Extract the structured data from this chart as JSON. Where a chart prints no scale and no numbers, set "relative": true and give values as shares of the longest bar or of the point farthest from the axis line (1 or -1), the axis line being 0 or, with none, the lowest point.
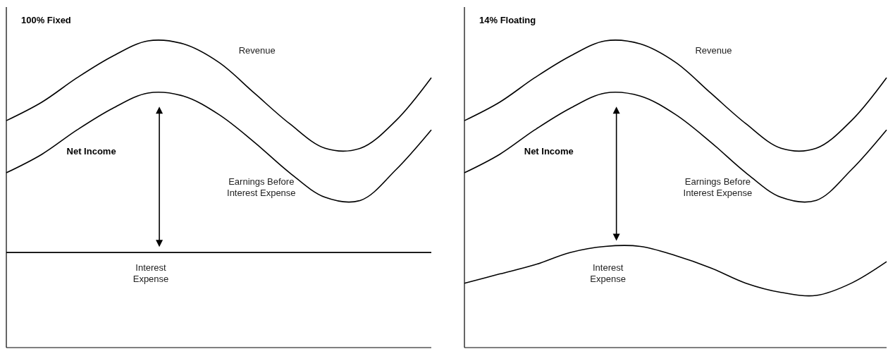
{
  "chart_data": [
    {
      "type": "line",
      "title": "100% Fixed",
      "relative": true,
      "categories": [
        null,
        null,
        null,
        null,
        null,
        null,
        null,
        null,
        null,
        null,
        null,
        null,
        null
      ],
      "series": [
        {
          "name": "Revenue",
          "color": "#000000",
          "values": [
            0.74,
            0.8,
            0.88,
            0.95,
            1.0,
            0.99,
            0.93,
            0.83,
            0.73,
            0.65,
            0.65,
            0.74,
            0.88
          ]
        },
        {
          "name": "Earnings Before Interest Expense",
          "color": "#000000",
          "values": [
            0.57,
            0.63,
            0.71,
            0.78,
            0.83,
            0.82,
            0.76,
            0.67,
            0.57,
            0.49,
            0.48,
            0.58,
            0.71
          ]
        },
        {
          "name": "Interest Expense",
          "color": "#000000",
          "values": [
            0.31,
            0.31,
            0.31,
            0.31,
            0.31,
            0.31,
            0.31,
            0.31,
            0.31,
            0.31,
            0.31,
            0.31,
            0.31
          ]
        }
      ],
      "annotations": [
        "Net Income"
      ],
      "marker": "none",
      "line_style": "solid"
    },
    {
      "type": "line",
      "title": "14% Floating",
      "relative": true,
      "categories": [
        null,
        null,
        null,
        null,
        null,
        null,
        null,
        null,
        null,
        null,
        null,
        null,
        null
      ],
      "series": [
        {
          "name": "Revenue",
          "color": "#000000",
          "values": [
            0.74,
            0.8,
            0.88,
            0.95,
            1.0,
            0.99,
            0.93,
            0.83,
            0.73,
            0.65,
            0.65,
            0.74,
            0.88
          ]
        },
        {
          "name": "Earnings Before Interest Expense",
          "color": "#000000",
          "values": [
            0.57,
            0.63,
            0.71,
            0.78,
            0.83,
            0.82,
            0.76,
            0.67,
            0.57,
            0.49,
            0.48,
            0.58,
            0.71
          ]
        },
        {
          "name": "Interest Expense",
          "color": "#000000",
          "values": [
            0.21,
            0.24,
            0.27,
            0.31,
            0.33,
            0.33,
            0.3,
            0.26,
            0.21,
            0.18,
            0.17,
            0.21,
            0.28
          ]
        }
      ],
      "annotations": [
        "Net Income"
      ],
      "marker": "none",
      "line_style": "solid"
    }
  ]
}
